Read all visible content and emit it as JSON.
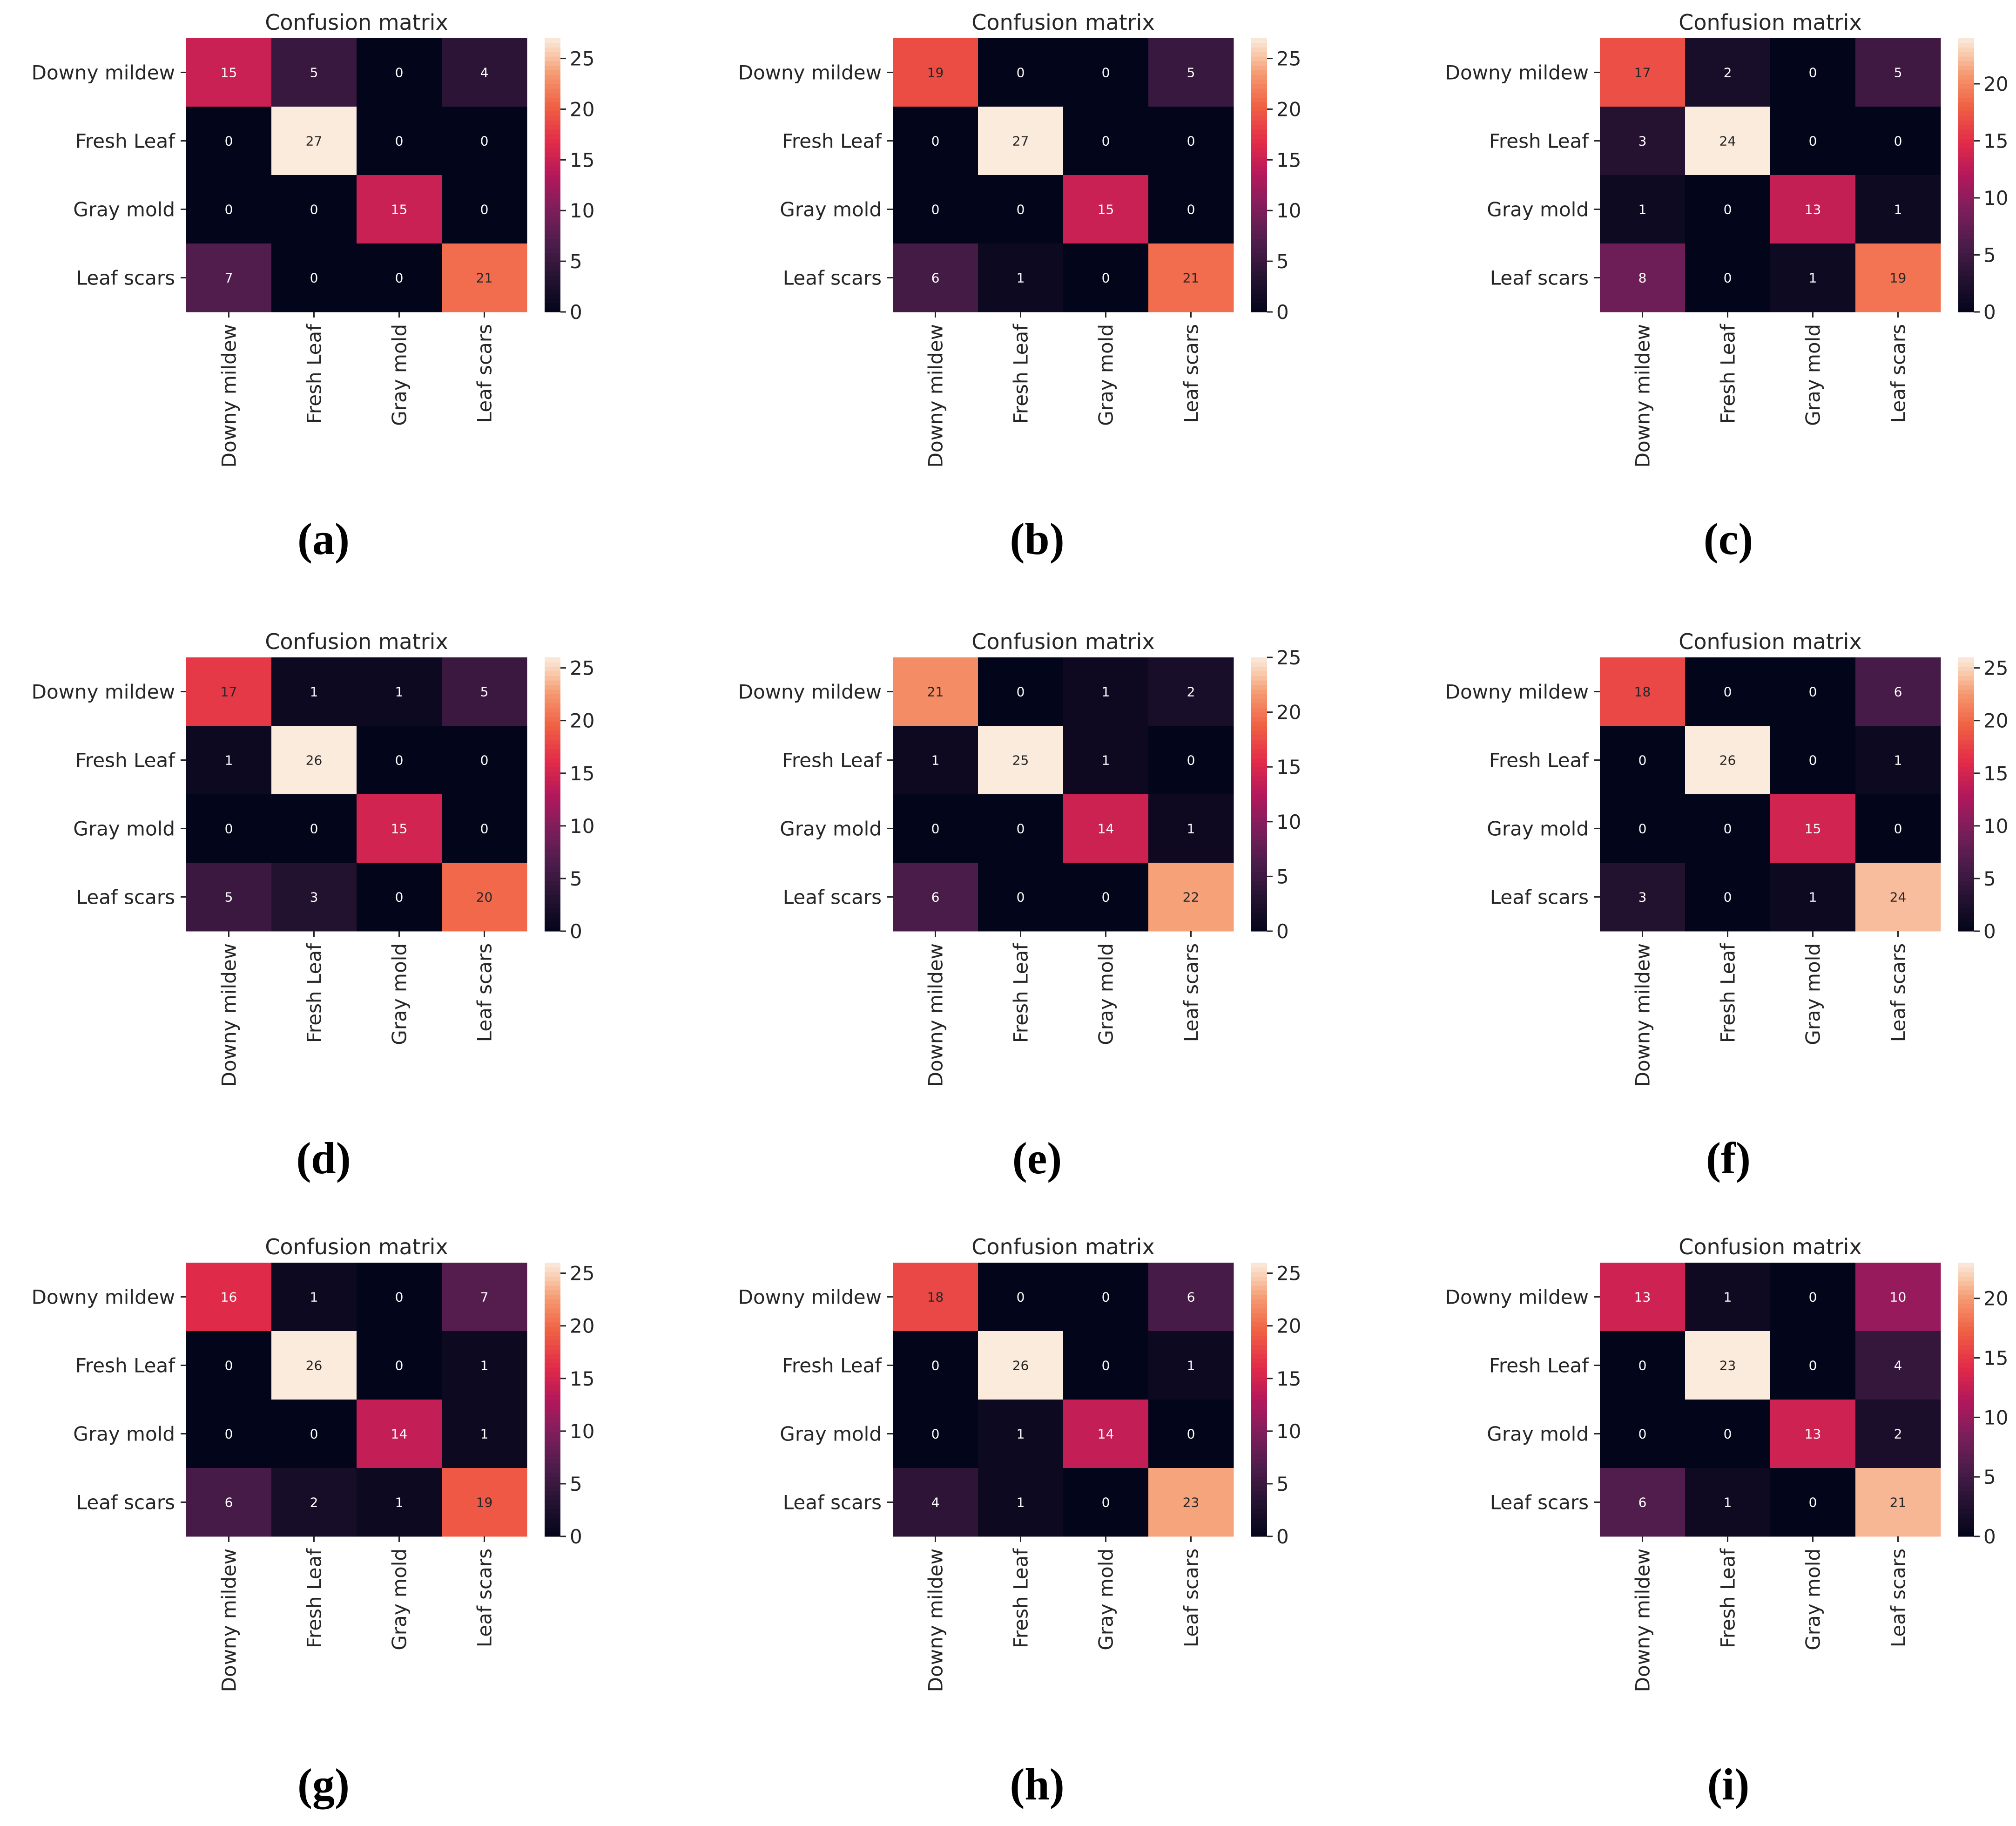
{
  "chart_data": [
    {
      "type": "heatmap",
      "panel_label": "(a)",
      "title": "Confusion matrix",
      "row_labels": [
        "Downy mildew",
        "Fresh Leaf",
        "Gray mold",
        "Leaf scars"
      ],
      "col_labels": [
        "Downy mildew",
        "Fresh Leaf",
        "Gray mold",
        "Leaf scars"
      ],
      "matrix": [
        [
          15,
          5,
          0,
          4
        ],
        [
          0,
          27,
          0,
          0
        ],
        [
          0,
          0,
          15,
          0
        ],
        [
          7,
          0,
          0,
          21
        ]
      ],
      "colorbar": {
        "min": 0,
        "max": 27,
        "ticks": [
          0,
          5,
          10,
          15,
          20,
          25
        ]
      }
    },
    {
      "type": "heatmap",
      "panel_label": "(b)",
      "title": "Confusion matrix",
      "row_labels": [
        "Downy mildew",
        "Fresh Leaf",
        "Gray mold",
        "Leaf scars"
      ],
      "col_labels": [
        "Downy mildew",
        "Fresh Leaf",
        "Gray mold",
        "Leaf scars"
      ],
      "matrix": [
        [
          19,
          0,
          0,
          5
        ],
        [
          0,
          27,
          0,
          0
        ],
        [
          0,
          0,
          15,
          0
        ],
        [
          6,
          1,
          0,
          21
        ]
      ],
      "colorbar": {
        "min": 0,
        "max": 27,
        "ticks": [
          0,
          5,
          10,
          15,
          20,
          25
        ]
      }
    },
    {
      "type": "heatmap",
      "panel_label": "(c)",
      "title": "Confusion matrix",
      "row_labels": [
        "Downy mildew",
        "Fresh Leaf",
        "Gray mold",
        "Leaf scars"
      ],
      "col_labels": [
        "Downy mildew",
        "Fresh Leaf",
        "Gray mold",
        "Leaf scars"
      ],
      "matrix": [
        [
          17,
          2,
          0,
          5
        ],
        [
          3,
          24,
          0,
          0
        ],
        [
          1,
          0,
          13,
          1
        ],
        [
          8,
          0,
          1,
          19
        ]
      ],
      "colorbar": {
        "min": 0,
        "max": 24,
        "ticks": [
          0,
          5,
          10,
          15,
          20
        ]
      }
    },
    {
      "type": "heatmap",
      "panel_label": "(d)",
      "title": "Confusion matrix",
      "row_labels": [
        "Downy mildew",
        "Fresh Leaf",
        "Gray mold",
        "Leaf scars"
      ],
      "col_labels": [
        "Downy mildew",
        "Fresh Leaf",
        "Gray mold",
        "Leaf scars"
      ],
      "matrix": [
        [
          17,
          1,
          1,
          5
        ],
        [
          1,
          26,
          0,
          0
        ],
        [
          0,
          0,
          15,
          0
        ],
        [
          5,
          3,
          0,
          20
        ]
      ],
      "colorbar": {
        "min": 0,
        "max": 26,
        "ticks": [
          0,
          5,
          10,
          15,
          20,
          25
        ]
      }
    },
    {
      "type": "heatmap",
      "panel_label": "(e)",
      "title": "Confusion matrix",
      "row_labels": [
        "Downy mildew",
        "Fresh Leaf",
        "Gray mold",
        "Leaf scars"
      ],
      "col_labels": [
        "Downy mildew",
        "Fresh Leaf",
        "Gray mold",
        "Leaf scars"
      ],
      "matrix": [
        [
          21,
          0,
          1,
          2
        ],
        [
          1,
          25,
          1,
          0
        ],
        [
          0,
          0,
          14,
          1
        ],
        [
          6,
          0,
          0,
          22
        ]
      ],
      "colorbar": {
        "min": 0,
        "max": 25,
        "ticks": [
          0,
          5,
          10,
          15,
          20,
          25
        ]
      }
    },
    {
      "type": "heatmap",
      "panel_label": "(f)",
      "title": "Confusion matrix",
      "row_labels": [
        "Downy mildew",
        "Fresh Leaf",
        "Gray mold",
        "Leaf scars"
      ],
      "col_labels": [
        "Downy mildew",
        "Fresh Leaf",
        "Gray mold",
        "Leaf scars"
      ],
      "matrix": [
        [
          18,
          0,
          0,
          6
        ],
        [
          0,
          26,
          0,
          1
        ],
        [
          0,
          0,
          15,
          0
        ],
        [
          3,
          0,
          1,
          24
        ]
      ],
      "colorbar": {
        "min": 0,
        "max": 26,
        "ticks": [
          0,
          5,
          10,
          15,
          20,
          25
        ]
      }
    },
    {
      "type": "heatmap",
      "panel_label": "(g)",
      "title": "Confusion matrix",
      "row_labels": [
        "Downy mildew",
        "Fresh Leaf",
        "Gray mold",
        "Leaf scars"
      ],
      "col_labels": [
        "Downy mildew",
        "Fresh Leaf",
        "Gray mold",
        "Leaf scars"
      ],
      "matrix": [
        [
          16,
          1,
          0,
          7
        ],
        [
          0,
          26,
          0,
          1
        ],
        [
          0,
          0,
          14,
          1
        ],
        [
          6,
          2,
          1,
          19
        ]
      ],
      "colorbar": {
        "min": 0,
        "max": 26,
        "ticks": [
          0,
          5,
          10,
          15,
          20,
          25
        ]
      }
    },
    {
      "type": "heatmap",
      "panel_label": "(h)",
      "title": "Confusion matrix",
      "row_labels": [
        "Downy mildew",
        "Fresh Leaf",
        "Gray mold",
        "Leaf scars"
      ],
      "col_labels": [
        "Downy mildew",
        "Fresh Leaf",
        "Gray mold",
        "Leaf scars"
      ],
      "matrix": [
        [
          18,
          0,
          0,
          6
        ],
        [
          0,
          26,
          0,
          1
        ],
        [
          0,
          1,
          14,
          0
        ],
        [
          4,
          1,
          0,
          23
        ]
      ],
      "colorbar": {
        "min": 0,
        "max": 26,
        "ticks": [
          0,
          5,
          10,
          15,
          20,
          25
        ]
      }
    },
    {
      "type": "heatmap",
      "panel_label": "(i)",
      "title": "Confusion matrix",
      "row_labels": [
        "Downy mildew",
        "Fresh Leaf",
        "Gray mold",
        "Leaf scars"
      ],
      "col_labels": [
        "Downy mildew",
        "Fresh Leaf",
        "Gray mold",
        "Leaf scars"
      ],
      "matrix": [
        [
          13,
          1,
          0,
          10
        ],
        [
          0,
          23,
          0,
          4
        ],
        [
          0,
          0,
          13,
          2
        ],
        [
          6,
          1,
          0,
          21
        ]
      ],
      "colorbar": {
        "min": 0,
        "max": 23,
        "ticks": [
          0,
          5,
          10,
          15,
          20
        ]
      }
    }
  ]
}
